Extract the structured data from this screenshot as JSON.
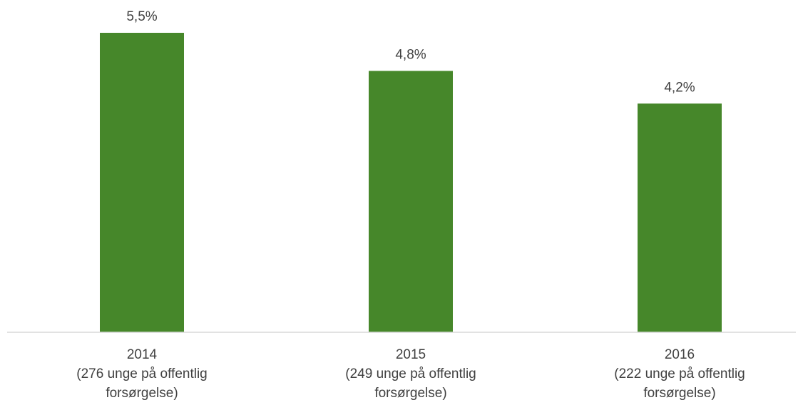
{
  "chart_data": {
    "type": "bar",
    "categories": [
      [
        "2014",
        "(276 unge på offentlig",
        "forsørgelse)"
      ],
      [
        "2015",
        "(249 unge på offentlig",
        "forsørgelse)"
      ],
      [
        "2016",
        "(222 unge på offentlig",
        "forsørgelse)"
      ]
    ],
    "values": [
      5.5,
      4.8,
      4.2
    ],
    "data_labels": [
      "5,5%",
      "4,8%",
      "4,2%"
    ],
    "title": "",
    "xlabel": "",
    "ylabel": "",
    "ylim": [
      0,
      5.5
    ],
    "grid": false,
    "legend": "none",
    "colors": {
      "bar": "#46872A",
      "axis": "#D9D9D9",
      "text": "#404040"
    }
  }
}
